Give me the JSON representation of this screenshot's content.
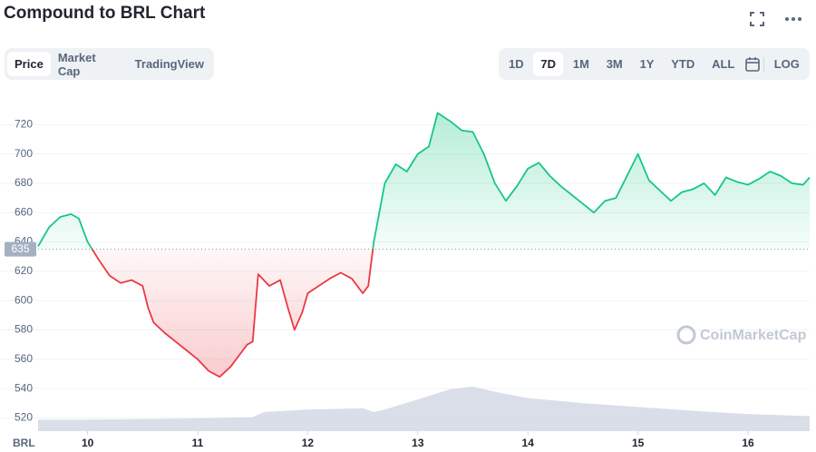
{
  "chart_data": {
    "type": "line",
    "title": "Compound to BRL Chart",
    "tabs": [
      "Price",
      "Market Cap",
      "TradingView"
    ],
    "active_tab": 0,
    "ranges": [
      "1D",
      "7D",
      "1M",
      "3M",
      "1Y",
      "YTD",
      "ALL"
    ],
    "active_range": 1,
    "log_button": "LOG",
    "currency": "BRL",
    "watermark": "CoinMarketCap",
    "baseline": 635,
    "up_color": "#16c784",
    "down_color": "#ea3943",
    "grid": true,
    "xlim": [
      9.55,
      16.56
    ],
    "xticks": [
      10,
      11,
      12,
      13,
      14,
      15,
      16
    ],
    "ylim": [
      511,
      740
    ],
    "yticks": [
      520,
      540,
      560,
      580,
      600,
      620,
      640,
      660,
      680,
      700,
      720
    ],
    "y2lim": [
      0,
      100
    ],
    "series": [
      {
        "color": "#16c784",
        "x": [
          9.55,
          9.65,
          9.75,
          9.85,
          9.92,
          10.0,
          10.1,
          10.2,
          10.3,
          10.4,
          10.5,
          10.55,
          10.6,
          10.7,
          10.8,
          10.9,
          11.0,
          11.1,
          11.2,
          11.3,
          11.4,
          11.45,
          11.5,
          11.55,
          11.65,
          11.75,
          11.82,
          11.88,
          11.95,
          12.0,
          12.1,
          12.2,
          12.3,
          12.4,
          12.5,
          12.55,
          12.6,
          12.7,
          12.8,
          12.9,
          13.0,
          13.1,
          13.18,
          13.3,
          13.4,
          13.5,
          13.6,
          13.7,
          13.8,
          13.9,
          14.0,
          14.1,
          14.2,
          14.3,
          14.4,
          14.5,
          14.6,
          14.7,
          14.8,
          14.9,
          15.0,
          15.1,
          15.2,
          15.3,
          15.4,
          15.5,
          15.6,
          15.7,
          15.8,
          15.9,
          16.0,
          16.1,
          16.2,
          16.3,
          16.4,
          16.5,
          16.56
        ],
        "values": [
          637,
          650,
          657,
          659,
          656,
          640,
          628,
          617,
          612,
          614,
          610,
          595,
          585,
          578,
          572,
          566,
          560,
          552,
          548,
          555,
          565,
          570,
          572,
          618,
          610,
          614,
          595,
          580,
          592,
          605,
          610,
          615,
          619,
          615,
          605,
          610,
          640,
          680,
          693,
          688,
          700,
          705,
          728,
          722,
          716,
          715,
          700,
          680,
          668,
          678,
          690,
          694,
          685,
          678,
          672,
          666,
          660,
          668,
          670,
          685,
          700,
          682,
          675,
          668,
          674,
          676,
          680,
          672,
          684,
          681,
          679,
          683,
          688,
          685,
          680,
          679,
          684
        ]
      },
      {
        "color": "#cfd6e4",
        "axis": "y2",
        "x": [
          9.55,
          10.0,
          10.5,
          11.0,
          11.5,
          11.6,
          12.0,
          12.5,
          12.6,
          12.7,
          13.0,
          13.3,
          13.5,
          13.7,
          14.0,
          14.5,
          15.0,
          15.5,
          16.0,
          16.5,
          16.56
        ],
        "values": [
          18,
          18,
          19,
          20,
          22,
          30,
          34,
          36,
          30,
          34,
          50,
          66,
          70,
          62,
          52,
          44,
          38,
          32,
          27,
          24,
          24
        ]
      }
    ]
  }
}
